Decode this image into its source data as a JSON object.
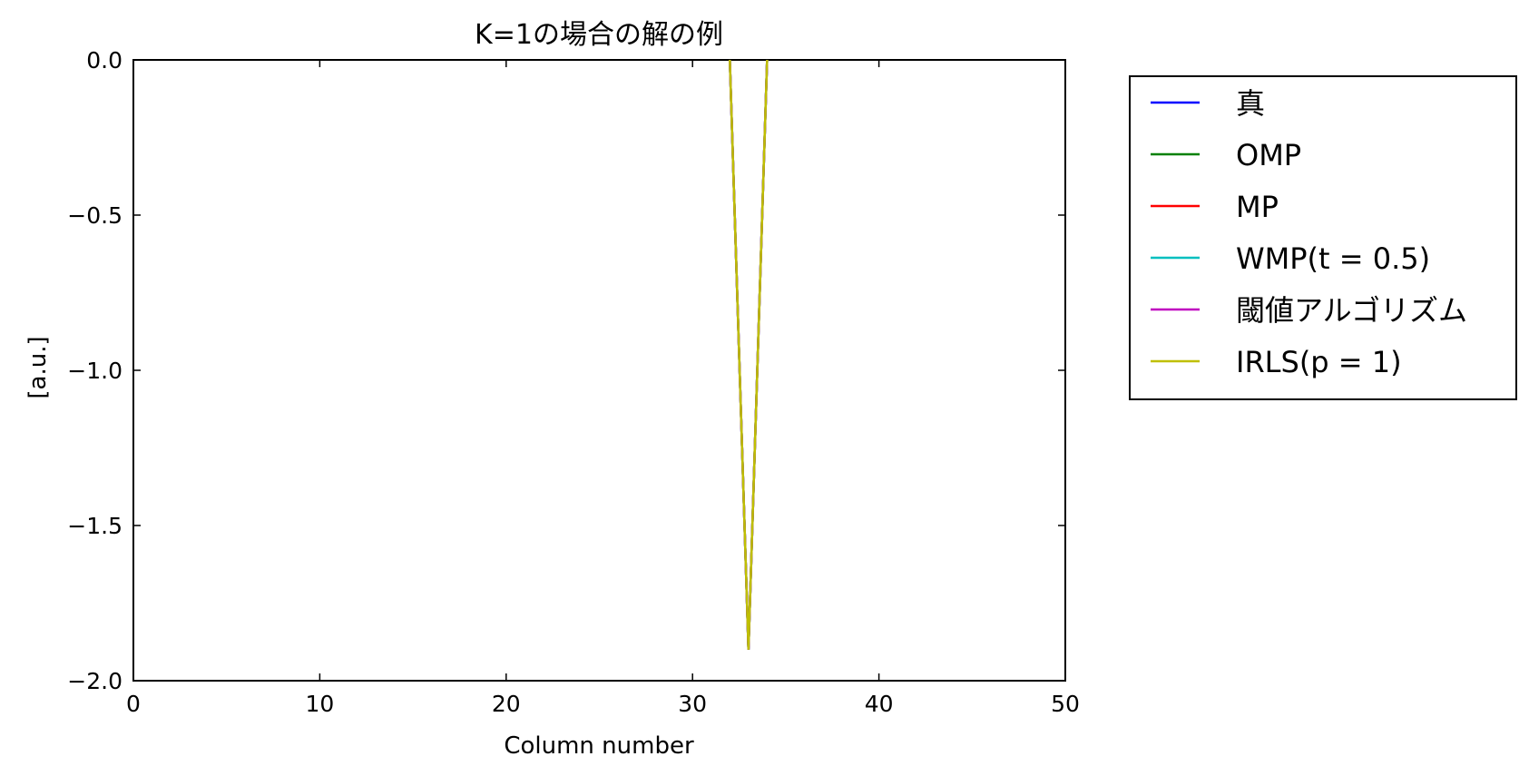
{
  "chart_data": {
    "type": "line",
    "title": "K=1の場合の解の例",
    "xlabel": "Column number",
    "ylabel": "[a.u.]",
    "xlim": [
      0,
      50
    ],
    "ylim": [
      -2.0,
      0.0
    ],
    "xticks": [
      0,
      10,
      20,
      30,
      40,
      50
    ],
    "xtick_labels": [
      "0",
      "10",
      "20",
      "30",
      "40",
      "50"
    ],
    "yticks": [
      0.0,
      -0.5,
      -1.0,
      -1.5,
      -2.0
    ],
    "ytick_labels": [
      "0.0",
      "−0.5",
      "−1.0",
      "−1.5",
      "−2.0"
    ],
    "grid": false,
    "legend_position": "outside-right",
    "x": [
      32,
      33,
      34
    ],
    "series": [
      {
        "name": "真",
        "color": "#0000ff",
        "values": [
          0,
          -1.9,
          0
        ]
      },
      {
        "name": "OMP",
        "color": "#008000",
        "values": [
          0,
          -1.9,
          0
        ]
      },
      {
        "name": "MP",
        "color": "#ff0000",
        "values": [
          0,
          -1.9,
          0
        ]
      },
      {
        "name": "WMP(t = 0.5)",
        "color": "#00bfbf",
        "values": [
          0,
          -1.9,
          0
        ]
      },
      {
        "name": "閾値アルゴリズム",
        "color": "#bf00bf",
        "values": [
          0,
          -1.9,
          0
        ]
      },
      {
        "name": "IRLS(p = 1)",
        "color": "#bfbf00",
        "values": [
          0,
          -1.9,
          0
        ]
      }
    ]
  }
}
